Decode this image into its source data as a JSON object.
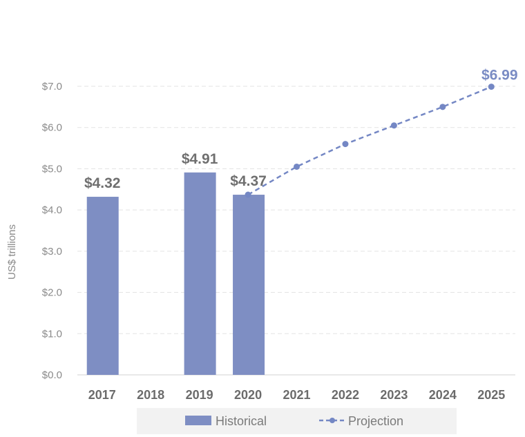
{
  "colors": {
    "bar": "#7e8ec3",
    "line": "#7487c4",
    "grid": "#e3e3e3",
    "legend_bg": "#f2f2f2"
  },
  "chart_data": {
    "type": "bar",
    "ylabel": "US$ trillions",
    "ylim": [
      0,
      7
    ],
    "yticks": [
      "$0.0",
      "$1.0",
      "$2.0",
      "$3.0",
      "$4.0",
      "$5.0",
      "$6.0",
      "$7.0"
    ],
    "categories": [
      "2017",
      "2018",
      "2019",
      "2020",
      "2021",
      "2022",
      "2023",
      "2024",
      "2025"
    ],
    "grid": "horizontal dashed",
    "legend_placement": "bottom",
    "series": [
      {
        "name": "Historical",
        "kind": "bar",
        "values": [
          4.32,
          null,
          4.91,
          4.37,
          null,
          null,
          null,
          null,
          null
        ],
        "labels": [
          "$4.32",
          null,
          "$4.91",
          "$4.37",
          null,
          null,
          null,
          null,
          null
        ]
      },
      {
        "name": "Projection",
        "kind": "dashed-line",
        "values": [
          null,
          null,
          null,
          4.37,
          5.05,
          5.6,
          6.05,
          6.5,
          6.99
        ],
        "labels": [
          null,
          null,
          null,
          null,
          null,
          null,
          null,
          null,
          "$6.99"
        ]
      }
    ]
  }
}
